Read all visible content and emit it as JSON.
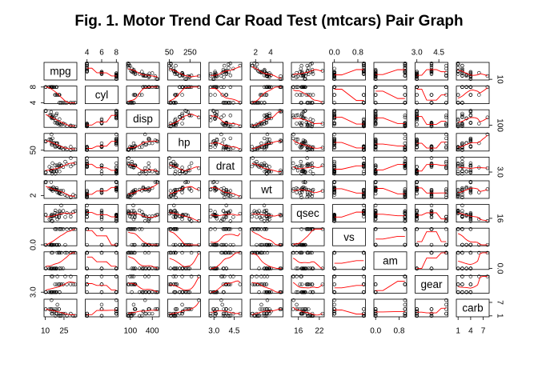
{
  "chart_data": {
    "type": "scatter",
    "subtype": "pairs-matrix",
    "title": "Fig. 1. Motor Trend Car Road Test (mtcars) Pair Graph",
    "variables": [
      "mpg",
      "cyl",
      "disp",
      "hp",
      "drat",
      "wt",
      "qsec",
      "vs",
      "am",
      "gear",
      "carb"
    ],
    "axis_ticks": {
      "mpg": [
        "10",
        "25"
      ],
      "cyl": [
        "4",
        "6",
        "8"
      ],
      "disp": [
        "100",
        "400"
      ],
      "hp": [
        "50",
        "250"
      ],
      "drat": [
        "3.0",
        "4.5"
      ],
      "wt": [
        "2",
        "4"
      ],
      "qsec": [
        "16",
        "22"
      ],
      "vs": [
        "0.0",
        "0.8"
      ],
      "am": [
        "0.0",
        "0.8"
      ],
      "gear": [
        "3.0",
        "4.5"
      ],
      "carb": [
        "1",
        "4",
        "7"
      ]
    },
    "top_axis_ticks": {
      "cyl": [
        "4",
        "6",
        "8"
      ],
      "hp": [
        "50",
        "250"
      ],
      "wt": [
        "2",
        "4"
      ],
      "vs": [
        "0.0",
        "0.8"
      ],
      "gear": [
        "3.0",
        "4.5"
      ]
    },
    "bottom_axis_ticks": {
      "mpg": [
        "10",
        "25"
      ],
      "disp": [
        "100",
        "400"
      ],
      "drat": [
        "3.0",
        "4.5"
      ],
      "qsec": [
        "16",
        "22"
      ],
      "am": [
        "0.0",
        "0.8"
      ],
      "carb": [
        "1",
        "4",
        "7"
      ]
    },
    "left_axis_ticks": {
      "cyl": [
        "4",
        "8"
      ],
      "hp": [
        "50"
      ],
      "wt": [
        "2"
      ],
      "vs": [
        "0.0"
      ],
      "gear": [
        "3.0"
      ]
    },
    "right_axis_ticks": {
      "mpg": [
        "10"
      ],
      "disp": [
        "100"
      ],
      "drat": [
        "3.0"
      ],
      "qsec": [
        "16"
      ],
      "am": [
        "0.0"
      ],
      "carb": [
        "1",
        "7"
      ]
    },
    "ranges": {
      "mpg": [
        10.4,
        33.9
      ],
      "cyl": [
        4,
        8
      ],
      "disp": [
        71.1,
        472
      ],
      "hp": [
        52,
        335
      ],
      "drat": [
        2.76,
        4.93
      ],
      "wt": [
        1.513,
        5.424
      ],
      "qsec": [
        14.5,
        22.9
      ],
      "vs": [
        0,
        1
      ],
      "am": [
        0,
        1
      ],
      "gear": [
        3,
        5
      ],
      "carb": [
        1,
        8
      ]
    },
    "observations": [
      [
        21.0,
        6,
        160.0,
        110,
        3.9,
        2.62,
        16.46,
        0,
        1,
        4,
        4
      ],
      [
        21.0,
        6,
        160.0,
        110,
        3.9,
        2.875,
        17.02,
        0,
        1,
        4,
        4
      ],
      [
        22.8,
        4,
        108.0,
        93,
        3.85,
        2.32,
        18.61,
        1,
        1,
        4,
        1
      ],
      [
        21.4,
        6,
        258.0,
        110,
        3.08,
        3.215,
        19.44,
        1,
        0,
        3,
        1
      ],
      [
        18.7,
        8,
        360.0,
        175,
        3.15,
        3.44,
        17.02,
        0,
        0,
        3,
        2
      ],
      [
        18.1,
        6,
        225.0,
        105,
        2.76,
        3.46,
        20.22,
        1,
        0,
        3,
        1
      ],
      [
        14.3,
        8,
        360.0,
        245,
        3.21,
        3.57,
        15.84,
        0,
        0,
        3,
        4
      ],
      [
        24.4,
        4,
        146.7,
        62,
        3.69,
        3.19,
        20.0,
        1,
        0,
        4,
        2
      ],
      [
        22.8,
        4,
        140.8,
        95,
        3.92,
        3.15,
        22.9,
        1,
        0,
        4,
        2
      ],
      [
        19.2,
        6,
        167.6,
        123,
        3.92,
        3.44,
        18.3,
        1,
        0,
        4,
        4
      ],
      [
        17.8,
        6,
        167.6,
        123,
        3.92,
        3.44,
        18.9,
        1,
        0,
        4,
        4
      ],
      [
        16.4,
        8,
        275.8,
        180,
        3.07,
        4.07,
        17.4,
        0,
        0,
        3,
        3
      ],
      [
        17.3,
        8,
        275.8,
        180,
        3.07,
        3.73,
        17.6,
        0,
        0,
        3,
        3
      ],
      [
        15.2,
        8,
        275.8,
        180,
        3.07,
        3.78,
        18.0,
        0,
        0,
        3,
        3
      ],
      [
        10.4,
        8,
        472.0,
        205,
        2.93,
        5.25,
        17.98,
        0,
        0,
        3,
        4
      ],
      [
        10.4,
        8,
        460.0,
        215,
        3.0,
        5.424,
        17.82,
        0,
        0,
        3,
        4
      ],
      [
        14.7,
        8,
        440.0,
        230,
        3.23,
        5.345,
        17.42,
        0,
        0,
        3,
        4
      ],
      [
        32.4,
        4,
        78.7,
        66,
        4.08,
        2.2,
        19.47,
        1,
        1,
        4,
        1
      ],
      [
        30.4,
        4,
        75.7,
        52,
        4.93,
        1.615,
        18.52,
        1,
        1,
        4,
        2
      ],
      [
        33.9,
        4,
        71.1,
        65,
        4.22,
        1.835,
        19.9,
        1,
        1,
        4,
        1
      ],
      [
        21.5,
        4,
        120.1,
        97,
        3.7,
        2.465,
        20.01,
        1,
        0,
        3,
        1
      ],
      [
        15.5,
        8,
        318.0,
        150,
        2.76,
        3.52,
        16.87,
        0,
        0,
        3,
        2
      ],
      [
        15.2,
        8,
        304.0,
        150,
        3.15,
        3.435,
        17.3,
        0,
        0,
        3,
        2
      ],
      [
        13.3,
        8,
        350.0,
        245,
        3.73,
        3.84,
        15.41,
        0,
        0,
        3,
        4
      ],
      [
        19.2,
        8,
        400.0,
        175,
        3.08,
        3.845,
        17.05,
        0,
        0,
        3,
        2
      ],
      [
        27.3,
        4,
        79.0,
        66,
        4.08,
        1.935,
        18.9,
        1,
        1,
        4,
        1
      ],
      [
        26.0,
        4,
        120.3,
        91,
        4.43,
        2.14,
        16.7,
        0,
        1,
        5,
        2
      ],
      [
        30.4,
        4,
        95.1,
        113,
        3.77,
        1.513,
        16.9,
        1,
        1,
        5,
        2
      ],
      [
        15.8,
        8,
        351.0,
        264,
        4.22,
        3.17,
        14.5,
        0,
        1,
        5,
        4
      ],
      [
        19.7,
        6,
        145.0,
        175,
        3.62,
        2.77,
        15.5,
        0,
        1,
        5,
        6
      ],
      [
        15.0,
        8,
        301.0,
        335,
        3.54,
        3.57,
        14.6,
        0,
        1,
        5,
        8
      ],
      [
        21.4,
        4,
        121.0,
        109,
        4.11,
        2.78,
        18.6,
        1,
        1,
        4,
        2
      ]
    ],
    "point_style": "open-circle",
    "smoother_color": "#ff0000",
    "grid": false,
    "legend": "none"
  }
}
